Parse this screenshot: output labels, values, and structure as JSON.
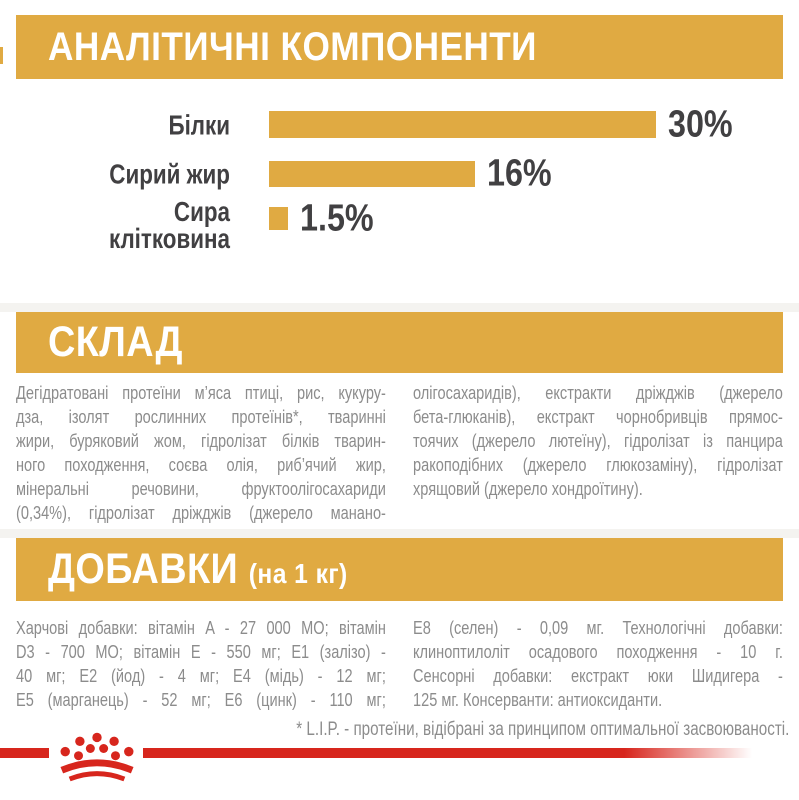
{
  "page": {
    "background": "#ffffff",
    "accent_gold": "#E0AA42",
    "accent_red": "#D7261D",
    "text_dark": "#414042",
    "text_gray": "#8C8C8C"
  },
  "analytical": {
    "title": "АНАЛІТИЧНІ КОМПОНЕНТИ"
  },
  "chart_data": {
    "type": "bar",
    "orientation": "horizontal",
    "title": "АНАЛІТИЧНІ КОМПОНЕНТИ",
    "categories": [
      "Білки",
      "Сирий жир",
      "Сира клітковина"
    ],
    "values": [
      30,
      16,
      1.5
    ],
    "value_labels": [
      "30%",
      "16%",
      "1.5%"
    ],
    "unit": "%",
    "xmax": 30,
    "bar_color": "#E0AA42",
    "grid": false,
    "legend": false
  },
  "composition": {
    "title": "СКЛАД",
    "columns": [
      {
        "justify_last": true,
        "lines": [
          "Дегідратовані протеїни м’яса птиці, рис, кукуру-",
          "дза, ізолят рослинних протеїнів*, тваринні",
          "жири, буряковий жом, гідролізат білків тварин-",
          "ного походження, соєва олія, риб’ячий жир,",
          "мінеральні речовини, фруктоолігосахариди",
          "(0,34%), гідролізат дріжджів (джерело манано-"
        ]
      },
      {
        "justify_last": false,
        "lines": [
          "олігосахаридів), екстракти дріжджів (джерело",
          "бета-глюканів), екстракт чорнобривців прямос-",
          "тоячих (джерело лютеїну), гідролізат із панцира",
          "ракоподібних (джерело глюкозаміну), гідролізат",
          "хрящовий (джерело хондроїтину)."
        ]
      }
    ]
  },
  "additives": {
    "title": "ДОБАВКИ",
    "title_suffix": "(на 1 кг)",
    "columns": [
      {
        "justify_last": true,
        "lines": [
          "Харчові добавки: вітамін A - 27 000 МО; вітамін",
          "D3 - 700 МО; вітамін E - 550 мг; E1 (залізо) -",
          "40 мг; E2 (йод) - 4 мг; E4 (мідь) - 12 мг;",
          "E5 (марганець) - 52 мг; E6 (цинк) - 110 мг;"
        ]
      },
      {
        "justify_last": false,
        "lines": [
          "E8 (селен) - 0,09 мг. Технологічні добавки:",
          "клиноптилоліт осадового походження - 10 г.",
          "Сенсорні добавки: екстракт юки Шидигера -",
          "125 мг. Консерванти: антиоксиданти."
        ]
      }
    ]
  },
  "footnote": "* L.I.P. - протеїни, відібрані за принципом оптимальної засвоюваності.",
  "footer": {
    "logo": "royal-canin-crown-logo"
  }
}
